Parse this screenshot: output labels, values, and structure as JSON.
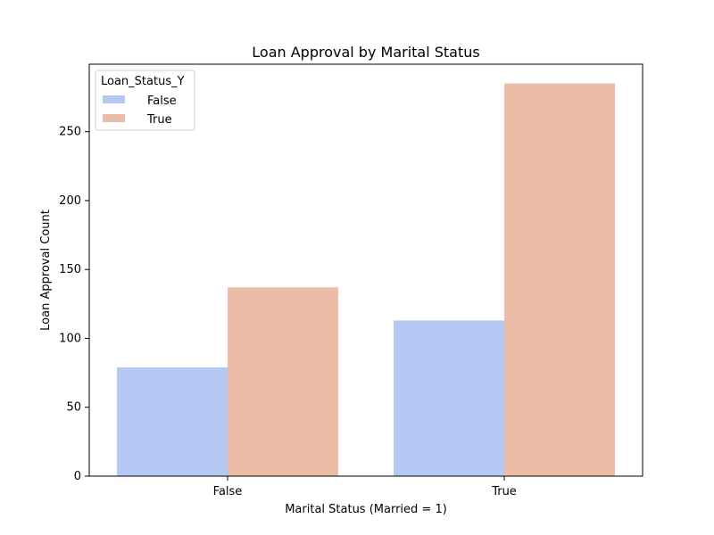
{
  "chart_data": {
    "type": "bar",
    "title": "Loan Approval by Marital Status",
    "xlabel": "Marital Status (Married = 1)",
    "ylabel": "Loan Approval Count",
    "categories": [
      "False",
      "True"
    ],
    "series": [
      {
        "name": "False",
        "values": [
          79,
          113
        ],
        "color": "#b3c9f4"
      },
      {
        "name": "True",
        "values": [
          137,
          285
        ],
        "color": "#ebbca6"
      }
    ],
    "ylim": [
      0,
      299
    ],
    "yticks": [
      0,
      50,
      100,
      150,
      200,
      250
    ],
    "grid": false,
    "legend": {
      "title": "Loan_Status_Y",
      "placement": "top-left"
    }
  }
}
